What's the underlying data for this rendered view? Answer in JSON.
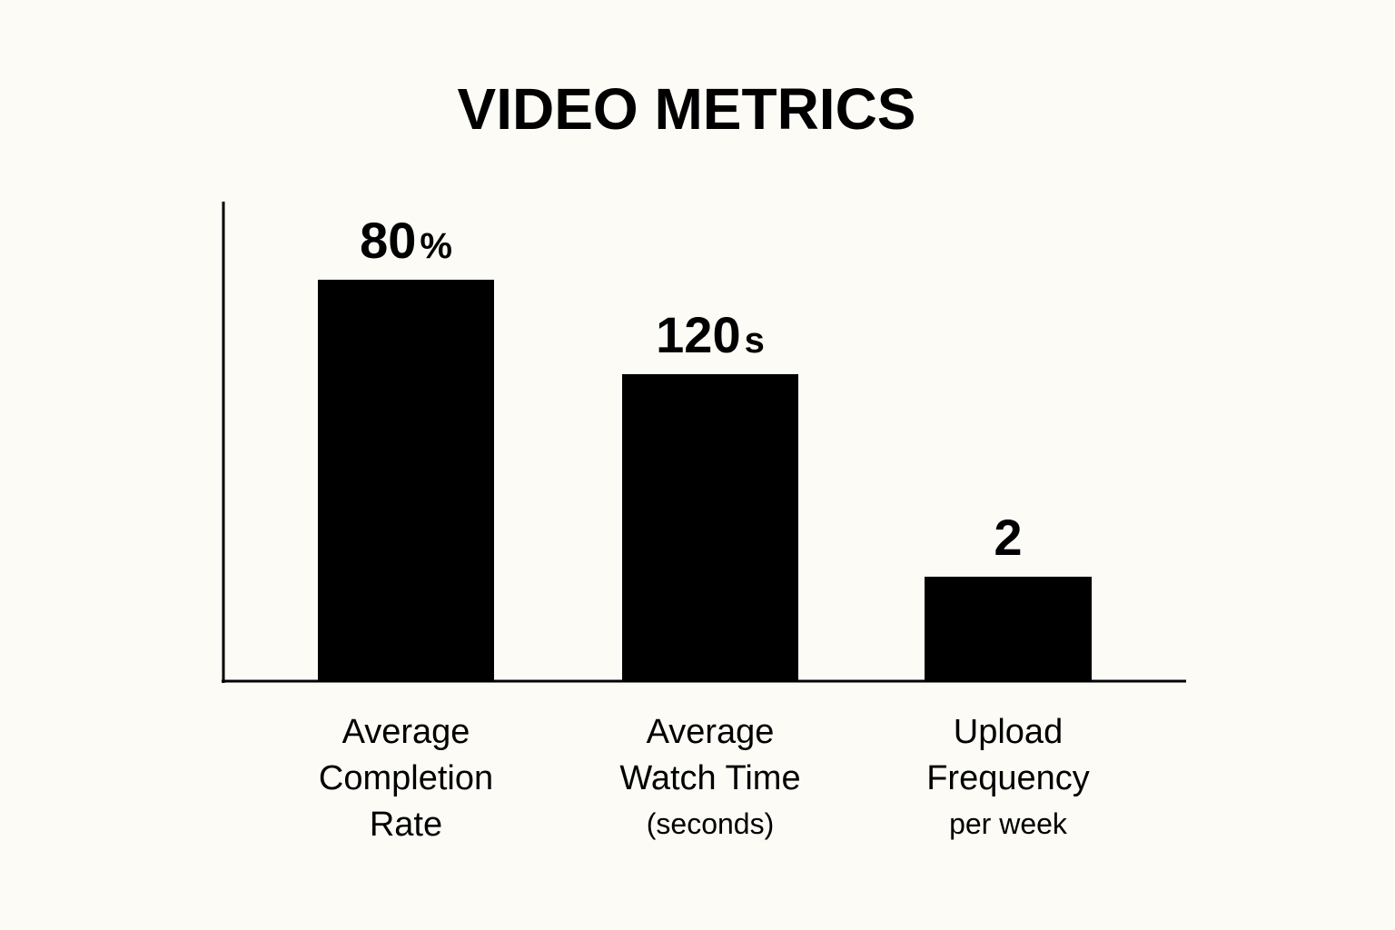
{
  "chart_data": {
    "type": "bar",
    "title": "VIDEO METRICS",
    "categories": [
      {
        "label_lines": [
          "Average",
          "Completion",
          "Rate"
        ],
        "sub_label": "",
        "value": 80,
        "value_text": "80",
        "unit_text": "%"
      },
      {
        "label_lines": [
          "Average",
          "Watch Time"
        ],
        "sub_label": "(seconds)",
        "value": 120,
        "value_text": "120",
        "unit_text": "s"
      },
      {
        "label_lines": [
          "Upload",
          "Frequency"
        ],
        "sub_label": "per week",
        "value": 2,
        "value_text": "2",
        "unit_text": ""
      }
    ],
    "relative_bar_levels": [
      1.0,
      0.765,
      0.26
    ],
    "bar_color": "#000000",
    "background_color": "#fcfbf6",
    "grid": false,
    "legend": "none"
  }
}
